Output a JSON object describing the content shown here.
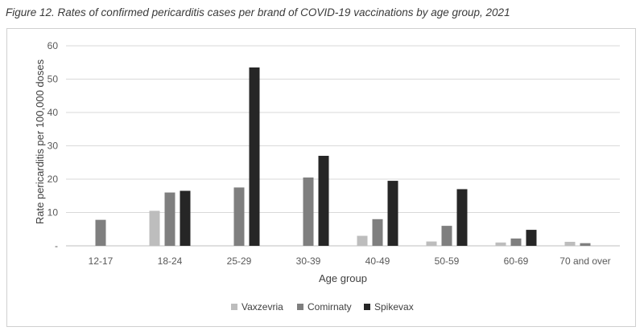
{
  "figure_title": "Figure 12. Rates of confirmed pericarditis cases per brand of COVID-19 vaccinations by age group, 2021",
  "chart_data": {
    "type": "bar",
    "title": "Figure 12. Rates of confirmed pericarditis cases per brand of COVID-19 vaccinations by age group, 2021",
    "xlabel": "Age group",
    "ylabel": "Rate pericarditis per 100,000 doses",
    "ylim": [
      0,
      60
    ],
    "yticks": [
      "-",
      "10",
      "20",
      "30",
      "40",
      "50",
      "60"
    ],
    "yticks_values": [
      0,
      10,
      20,
      30,
      40,
      50,
      60
    ],
    "categories": [
      "12-17",
      "18-24",
      "25-29",
      "30-39",
      "40-49",
      "50-59",
      "60-69",
      "70 and over"
    ],
    "series": [
      {
        "name": "Vaxzevria",
        "color": "#bdbdbd",
        "values": [
          null,
          10.5,
          null,
          null,
          3.0,
          1.3,
          1.0,
          1.2
        ]
      },
      {
        "name": "Comirnaty",
        "color": "#7f7f7f",
        "values": [
          7.8,
          16.0,
          17.5,
          20.5,
          8.0,
          6.0,
          2.2,
          0.8
        ]
      },
      {
        "name": "Spikevax",
        "color": "#262626",
        "values": [
          null,
          16.5,
          53.5,
          27.0,
          19.5,
          17.0,
          4.8,
          null
        ]
      }
    ],
    "grid": true,
    "legend_position": "bottom"
  }
}
